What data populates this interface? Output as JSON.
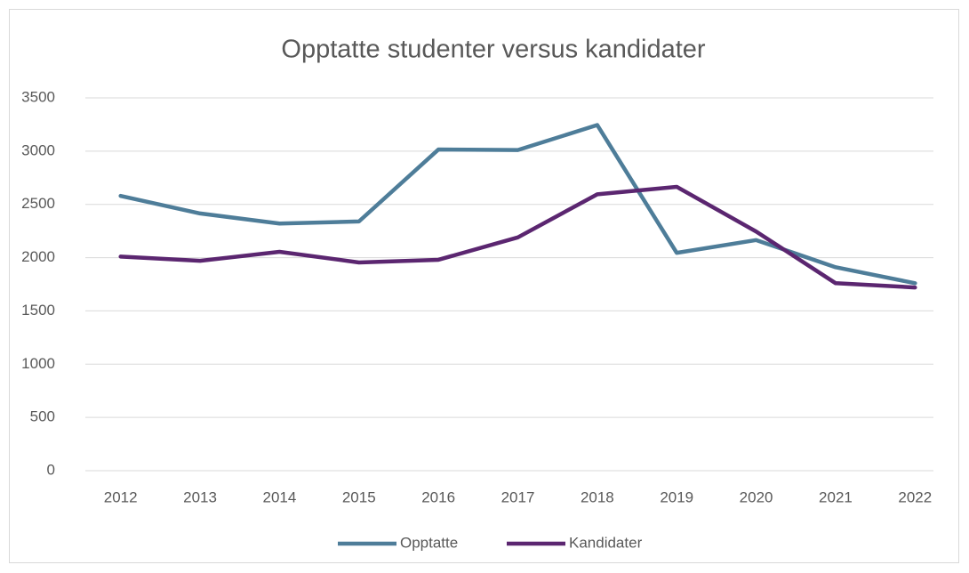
{
  "chart_data": {
    "type": "line",
    "title": "Opptatte studenter versus kandidater",
    "categories": [
      "2012",
      "2013",
      "2014",
      "2015",
      "2016",
      "2017",
      "2018",
      "2019",
      "2020",
      "2021",
      "2022"
    ],
    "series": [
      {
        "name": "Opptatte",
        "color": "#4e7d99",
        "values": [
          2580,
          2415,
          2320,
          2340,
          3015,
          3010,
          3245,
          2045,
          2165,
          1910,
          1760
        ]
      },
      {
        "name": "Kandidater",
        "color": "#5b2670",
        "values": [
          2010,
          1970,
          2055,
          1955,
          1980,
          2190,
          2595,
          2665,
          2245,
          1760,
          1720
        ]
      }
    ],
    "ylim": [
      0,
      3500
    ],
    "yticks": [
      0,
      500,
      1000,
      1500,
      2000,
      2500,
      3000,
      3500
    ],
    "grid": true,
    "legend": "bottom"
  }
}
